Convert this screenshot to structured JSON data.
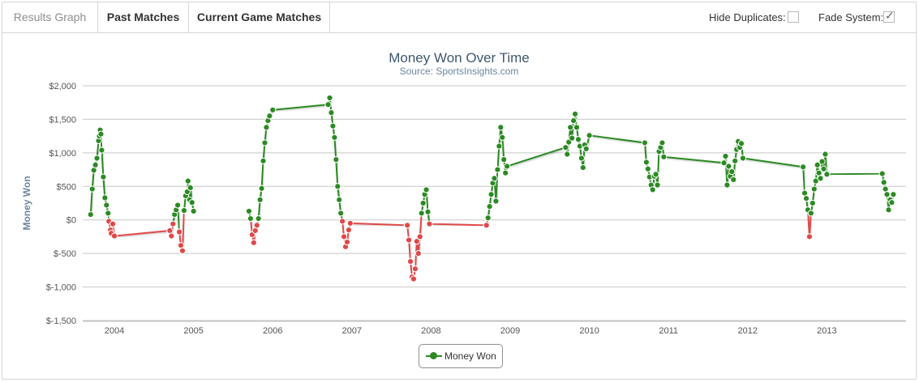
{
  "tabs": [
    {
      "label": "Results Graph",
      "active": true
    },
    {
      "label": "Past Matches",
      "active": false
    },
    {
      "label": "Current Game Matches",
      "active": false
    }
  ],
  "options": {
    "hide_duplicates_label": "Hide Duplicates:",
    "hide_duplicates_checked": false,
    "fade_system_label": "Fade System:",
    "fade_system_checked": true,
    "check_glyph": "✓"
  },
  "colors": {
    "positive": "#2b8a23",
    "negative": "#e04848",
    "grid": "#c8c8c8",
    "title": "#3e576f",
    "subtitle": "#6d869f"
  },
  "chart_data": {
    "type": "line",
    "title": "Money Won Over Time",
    "subtitle": "Source: SportsInsights.com",
    "xlabel": "",
    "ylabel": "Money Won",
    "x_ticks": [
      "2004",
      "2005",
      "2006",
      "2007",
      "2008",
      "2009",
      "2010",
      "2011",
      "2012",
      "2013"
    ],
    "y_ticks": [
      "$2,000",
      "$1,500",
      "$1,000",
      "$500",
      "$0",
      "$-500",
      "$-1,000",
      "$-1,500"
    ],
    "ylim": [
      -1500,
      2000
    ],
    "xlim": [
      2003.6,
      2014.0
    ],
    "grid": true,
    "legend": {
      "position": "bottom-center"
    },
    "series": [
      {
        "name": "Money Won",
        "points": [
          [
            2003.7,
            80
          ],
          [
            2003.72,
            460
          ],
          [
            2003.74,
            740
          ],
          [
            2003.76,
            820
          ],
          [
            2003.78,
            920
          ],
          [
            2003.8,
            1180
          ],
          [
            2003.81,
            1250
          ],
          [
            2003.82,
            1340
          ],
          [
            2003.83,
            1280
          ],
          [
            2003.84,
            1040
          ],
          [
            2003.86,
            640
          ],
          [
            2003.88,
            330
          ],
          [
            2003.9,
            220
          ],
          [
            2003.92,
            100
          ],
          [
            2003.93,
            -20
          ],
          [
            2003.95,
            -150
          ],
          [
            2003.96,
            -200
          ],
          [
            2003.98,
            -60
          ],
          [
            2004.0,
            -240
          ],
          [
            2004.7,
            -160
          ],
          [
            2004.72,
            -240
          ],
          [
            2004.74,
            -60
          ],
          [
            2004.76,
            80
          ],
          [
            2004.78,
            150
          ],
          [
            2004.8,
            220
          ],
          [
            2004.82,
            -180
          ],
          [
            2004.84,
            -380
          ],
          [
            2004.86,
            -460
          ],
          [
            2004.88,
            140
          ],
          [
            2004.9,
            360
          ],
          [
            2004.92,
            420
          ],
          [
            2004.93,
            580
          ],
          [
            2004.95,
            300
          ],
          [
            2004.96,
            480
          ],
          [
            2004.98,
            260
          ],
          [
            2005.0,
            130
          ],
          [
            2005.7,
            130
          ],
          [
            2005.72,
            20
          ],
          [
            2005.74,
            -220
          ],
          [
            2005.76,
            -340
          ],
          [
            2005.78,
            -160
          ],
          [
            2005.8,
            -80
          ],
          [
            2005.82,
            20
          ],
          [
            2005.84,
            300
          ],
          [
            2005.86,
            470
          ],
          [
            2005.88,
            880
          ],
          [
            2005.9,
            1150
          ],
          [
            2005.92,
            1380
          ],
          [
            2005.94,
            1480
          ],
          [
            2005.96,
            1550
          ],
          [
            2006.0,
            1640
          ],
          [
            2006.7,
            1720
          ],
          [
            2006.72,
            1820
          ],
          [
            2006.74,
            1600
          ],
          [
            2006.76,
            1400
          ],
          [
            2006.78,
            1230
          ],
          [
            2006.8,
            900
          ],
          [
            2006.82,
            500
          ],
          [
            2006.84,
            300
          ],
          [
            2006.86,
            100
          ],
          [
            2006.88,
            -20
          ],
          [
            2006.9,
            -250
          ],
          [
            2006.92,
            -400
          ],
          [
            2006.94,
            -330
          ],
          [
            2006.96,
            -150
          ],
          [
            2006.98,
            -50
          ],
          [
            2007.7,
            -80
          ],
          [
            2007.72,
            -300
          ],
          [
            2007.74,
            -620
          ],
          [
            2007.76,
            -850
          ],
          [
            2007.78,
            -880
          ],
          [
            2007.8,
            -730
          ],
          [
            2007.82,
            -320
          ],
          [
            2007.84,
            -500
          ],
          [
            2007.86,
            -250
          ],
          [
            2007.88,
            100
          ],
          [
            2007.9,
            250
          ],
          [
            2007.92,
            380
          ],
          [
            2007.94,
            450
          ],
          [
            2007.96,
            120
          ],
          [
            2007.98,
            -60
          ],
          [
            2008.7,
            -80
          ],
          [
            2008.72,
            30
          ],
          [
            2008.74,
            200
          ],
          [
            2008.76,
            380
          ],
          [
            2008.78,
            550
          ],
          [
            2008.8,
            620
          ],
          [
            2008.82,
            280
          ],
          [
            2008.84,
            750
          ],
          [
            2008.86,
            1100
          ],
          [
            2008.88,
            1380
          ],
          [
            2008.9,
            1230
          ],
          [
            2008.92,
            900
          ],
          [
            2008.94,
            700
          ],
          [
            2008.96,
            800
          ],
          [
            2009.7,
            1080
          ],
          [
            2009.72,
            980
          ],
          [
            2009.74,
            1160
          ],
          [
            2009.76,
            1380
          ],
          [
            2009.78,
            1220
          ],
          [
            2009.8,
            1480
          ],
          [
            2009.82,
            1580
          ],
          [
            2009.84,
            1380
          ],
          [
            2009.86,
            1200
          ],
          [
            2009.88,
            1100
          ],
          [
            2009.9,
            920
          ],
          [
            2009.92,
            780
          ],
          [
            2009.94,
            1120
          ],
          [
            2009.96,
            1060
          ],
          [
            2010.0,
            1260
          ],
          [
            2010.7,
            1150
          ],
          [
            2010.72,
            860
          ],
          [
            2010.74,
            760
          ],
          [
            2010.76,
            640
          ],
          [
            2010.78,
            520
          ],
          [
            2010.8,
            450
          ],
          [
            2010.82,
            650
          ],
          [
            2010.84,
            680
          ],
          [
            2010.86,
            520
          ],
          [
            2010.88,
            1020
          ],
          [
            2010.9,
            1080
          ],
          [
            2010.92,
            1150
          ],
          [
            2010.94,
            940
          ],
          [
            2011.7,
            850
          ],
          [
            2011.72,
            950
          ],
          [
            2011.74,
            520
          ],
          [
            2011.76,
            800
          ],
          [
            2011.78,
            650
          ],
          [
            2011.8,
            720
          ],
          [
            2011.82,
            600
          ],
          [
            2011.84,
            880
          ],
          [
            2011.86,
            1050
          ],
          [
            2011.88,
            1170
          ],
          [
            2011.9,
            1080
          ],
          [
            2011.92,
            1140
          ],
          [
            2011.94,
            920
          ],
          [
            2012.7,
            790
          ],
          [
            2012.72,
            400
          ],
          [
            2012.74,
            320
          ],
          [
            2012.76,
            150
          ],
          [
            2012.78,
            -250
          ],
          [
            2012.8,
            100
          ],
          [
            2012.82,
            250
          ],
          [
            2012.84,
            460
          ],
          [
            2012.86,
            580
          ],
          [
            2012.88,
            820
          ],
          [
            2012.9,
            700
          ],
          [
            2012.92,
            620
          ],
          [
            2012.94,
            870
          ],
          [
            2012.96,
            760
          ],
          [
            2012.98,
            980
          ],
          [
            2013.0,
            680
          ],
          [
            2013.7,
            690
          ],
          [
            2013.72,
            560
          ],
          [
            2013.74,
            460
          ],
          [
            2013.76,
            380
          ],
          [
            2013.78,
            150
          ],
          [
            2013.8,
            300
          ],
          [
            2013.82,
            260
          ],
          [
            2013.84,
            380
          ]
        ]
      }
    ]
  }
}
